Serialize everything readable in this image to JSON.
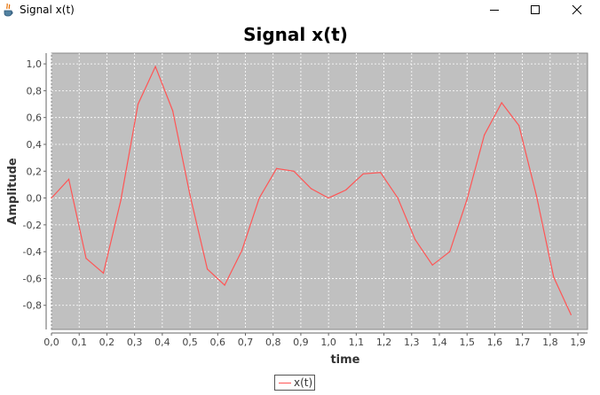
{
  "window": {
    "title": "Signal x(t)",
    "app_icon": "java-coffee-icon",
    "controls": {
      "minimize": "minimize-icon",
      "maximize": "maximize-icon",
      "close": "close-icon"
    }
  },
  "chart_data": {
    "type": "line",
    "title": "Signal x(t)",
    "xlabel": "time",
    "ylabel": "Amplitude",
    "xlim": [
      0.0,
      1.935
    ],
    "ylim": [
      -0.98,
      1.08
    ],
    "grid": true,
    "legend_position": "bottom-center",
    "background_color": "#c0c0c0",
    "line_color": "#ff5555",
    "xticks": [
      0.0,
      0.1,
      0.2,
      0.3,
      0.4,
      0.5,
      0.6,
      0.7,
      0.8,
      0.9,
      1.0,
      1.1,
      1.2,
      1.3,
      1.4,
      1.5,
      1.6,
      1.7,
      1.8,
      1.9
    ],
    "xtick_labels": [
      "0,0",
      "0,1",
      "0,2",
      "0,3",
      "0,4",
      "0,5",
      "0,6",
      "0,7",
      "0,8",
      "0,9",
      "1,0",
      "1,1",
      "1,2",
      "1,3",
      "1,4",
      "1,5",
      "1,6",
      "1,7",
      "1,8",
      "1,9"
    ],
    "yticks": [
      1.0,
      0.8,
      0.6,
      0.4,
      0.2,
      0.0,
      -0.2,
      -0.4,
      -0.6,
      -0.8
    ],
    "ytick_labels": [
      "1,0",
      "0,8",
      "0,6",
      "0,4",
      "0,2",
      "0,0",
      "-0,2",
      "-0,4",
      "-0,6",
      "-0,8"
    ],
    "series": [
      {
        "name": "x(t)",
        "x": [
          0.0,
          0.0625,
          0.125,
          0.1875,
          0.25,
          0.3125,
          0.375,
          0.4375,
          0.5,
          0.5625,
          0.625,
          0.6875,
          0.75,
          0.8125,
          0.875,
          0.9375,
          1.0,
          1.0625,
          1.125,
          1.1875,
          1.25,
          1.3125,
          1.375,
          1.4375,
          1.5,
          1.5625,
          1.625,
          1.6875,
          1.75,
          1.8125,
          1.875
        ],
        "y": [
          0.0,
          0.14,
          -0.45,
          -0.56,
          -0.02,
          0.7,
          0.98,
          0.65,
          0.02,
          -0.53,
          -0.65,
          -0.39,
          0.0,
          0.22,
          0.2,
          0.07,
          0.0,
          0.06,
          0.18,
          0.19,
          0.0,
          -0.31,
          -0.5,
          -0.4,
          -0.01,
          0.47,
          0.71,
          0.54,
          0.02,
          -0.59,
          -0.87
        ]
      }
    ]
  }
}
